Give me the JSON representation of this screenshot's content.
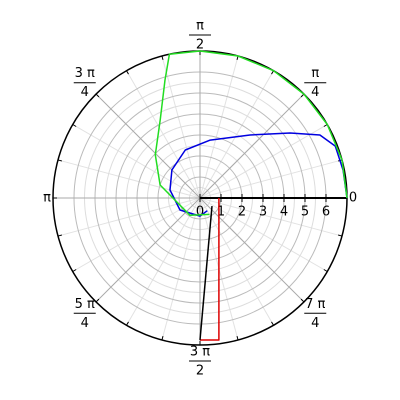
{
  "chart_data": {
    "type": "polar",
    "rlim": [
      0,
      7
    ],
    "rticks": [
      0,
      1,
      2,
      3,
      4,
      5,
      6
    ],
    "thetaticks": [
      {
        "value": 0,
        "label": "0"
      },
      {
        "value": 45,
        "numerator": "π",
        "denominator": "4"
      },
      {
        "value": 90,
        "numerator": "π",
        "denominator": "2"
      },
      {
        "value": 135,
        "numerator": "3 π",
        "denominator": "4"
      },
      {
        "value": 180,
        "label": "π"
      },
      {
        "value": 225,
        "numerator": "5 π",
        "denominator": "4"
      },
      {
        "value": 270,
        "numerator": "3 π",
        "denominator": "2"
      },
      {
        "value": 315,
        "numerator": "7 π",
        "denominator": "4"
      }
    ],
    "grid": true,
    "series": [
      {
        "color": "#0000e0",
        "x": [
          0,
          11,
          21,
          27.7,
          35.8,
          51.6,
          80,
          107,
          135,
          165,
          211,
          270,
          300
        ],
        "values": [
          7,
          6.94,
          6.9,
          6.45,
          5.29,
          3.83,
          2.8,
          2.39,
          1.89,
          1.48,
          1.11,
          0.86,
          0.7
        ]
      },
      {
        "color": "#22dd22",
        "x": [
          300,
          240,
          162,
          136,
          117,
          106.5,
          102,
          90,
          75,
          60,
          45,
          30,
          15,
          0
        ],
        "values": [
          0.9,
          0.95,
          2.0,
          2.96,
          4.17,
          5.86,
          7,
          7,
          7,
          7,
          7,
          7,
          7,
          7
        ]
      },
      {
        "color": "#dd0000",
        "x": [
          0,
          277.6,
          270
        ],
        "values": [
          0.9,
          6.82,
          6.76
        ]
      },
      {
        "color": "#000000",
        "x": [
          326,
          270
        ],
        "values": [
          0.69,
          6.76
        ]
      }
    ]
  }
}
